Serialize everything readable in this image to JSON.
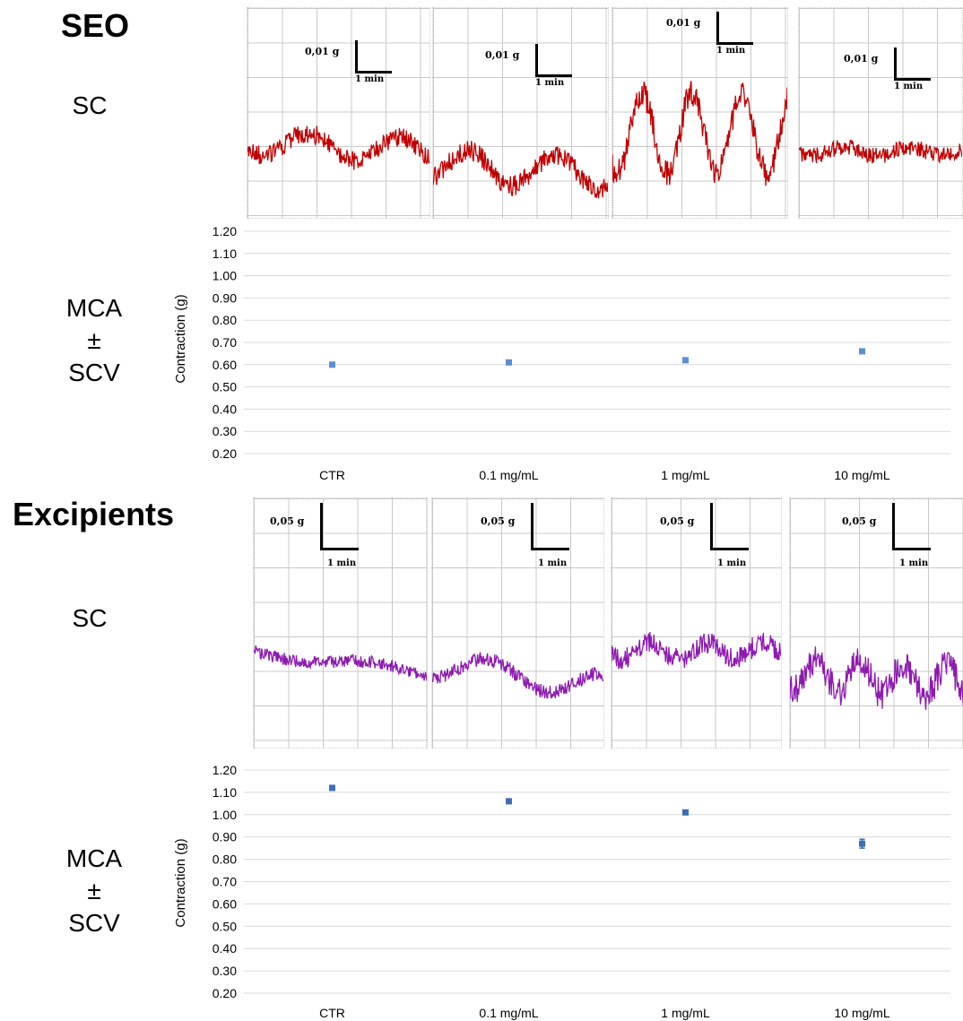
{
  "sections": [
    {
      "title": "SEO",
      "trace_row_label": "SC",
      "chart_row_label": [
        "MCA",
        "±",
        "SCV"
      ],
      "trace_color": "#c00000",
      "panels": [
        {
          "scale_y": "0,01 g",
          "scale_x": "1 min"
        },
        {
          "scale_y": "0,01 g",
          "scale_x": "1 min"
        },
        {
          "scale_y": "0,01 g",
          "scale_x": "1 min"
        },
        {
          "scale_y": "0,01 g",
          "scale_x": "1 min"
        }
      ]
    },
    {
      "title": "Excipients",
      "trace_row_label": "SC",
      "chart_row_label": [
        "MCA",
        "±",
        "SCV"
      ],
      "trace_color": "#8e1ab0",
      "panels": [
        {
          "scale_y": "0,05 g",
          "scale_x": "1 min"
        },
        {
          "scale_y": "0,05 g",
          "scale_x": "1 min"
        },
        {
          "scale_y": "0,05 g",
          "scale_x": "1 min"
        },
        {
          "scale_y": "0,05 g",
          "scale_x": "1 min"
        }
      ]
    }
  ],
  "chart_data": [
    {
      "type": "scatter",
      "title": "",
      "xlabel": "",
      "ylabel": "Contraction (g)",
      "categories": [
        "CTR",
        "0.1 mg/mL",
        "1 mg/mL",
        "10 mg/mL"
      ],
      "values": [
        0.6,
        0.61,
        0.62,
        0.66
      ],
      "errors": [
        0.0,
        0.0,
        0.01,
        0.0
      ],
      "ylim": [
        0.2,
        1.2
      ],
      "yticks": [
        "1.20",
        "1.10",
        "1.00",
        "0.90",
        "0.80",
        "0.70",
        "0.60",
        "0.50",
        "0.40",
        "0.30",
        "0.20"
      ],
      "grid": true,
      "marker_color": "#5b8fd6"
    },
    {
      "type": "scatter",
      "title": "",
      "xlabel": "",
      "ylabel": "Contraction (g)",
      "categories": [
        "CTR",
        "0.1 mg/mL",
        "1 mg/mL",
        "10 mg/mL"
      ],
      "values": [
        1.12,
        1.06,
        1.01,
        0.87
      ],
      "errors": [
        0.01,
        0.01,
        0.01,
        0.02
      ],
      "ylim": [
        0.2,
        1.2
      ],
      "yticks": [
        "1.20",
        "1.10",
        "1.00",
        "0.90",
        "0.80",
        "0.70",
        "0.60",
        "0.50",
        "0.40",
        "0.30",
        "0.20"
      ],
      "grid": true,
      "marker_color": "#3e6fb5"
    }
  ]
}
